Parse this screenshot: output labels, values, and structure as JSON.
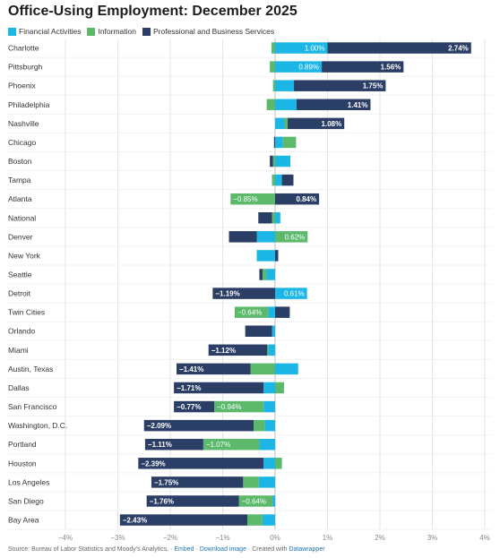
{
  "chart_data": {
    "type": "bar",
    "title": "Office-Using Employment: December 2025",
    "orientation": "horizontal",
    "stacked": "diverging",
    "xlim": [
      -4,
      4
    ],
    "x_ticks": [
      "−4%",
      "−3%",
      "−2%",
      "−1%",
      "0%",
      "1%",
      "2%",
      "3%",
      "4%"
    ],
    "grid": true,
    "legend_position": "top-left",
    "colors": {
      "Financial Activities": "#1bb6e6",
      "Information": "#5cb96b",
      "Professional and Business Services": "#2b3e66"
    },
    "categories": [
      "Charlotte",
      "Pittsburgh",
      "Phoenix",
      "Philadelphia",
      "Nashville",
      "Chicago",
      "Boston",
      "Tampa",
      "Atlanta",
      "National",
      "Denver",
      "New York",
      "Seattle",
      "Detroit",
      "Twin Cities",
      "Orlando",
      "Miami",
      "Austin, Texas",
      "Dallas",
      "San Francisco",
      "Washington, D.C.",
      "Portland",
      "Houston",
      "Los Angeles",
      "San Diego",
      "Bay Area"
    ],
    "series": [
      {
        "name": "Financial Activities",
        "values": [
          1.0,
          0.89,
          0.36,
          0.41,
          0.18,
          0.15,
          0.29,
          0.13,
          0.0,
          0.1,
          -0.35,
          -0.35,
          -0.17,
          0.61,
          -0.13,
          -0.06,
          -0.13,
          0.44,
          -0.22,
          -0.22,
          -0.2,
          -0.3,
          -0.22,
          -0.31,
          -0.05,
          -0.24
        ]
      },
      {
        "name": "Information",
        "values": [
          -0.07,
          -0.1,
          -0.04,
          -0.16,
          0.06,
          0.25,
          -0.04,
          -0.06,
          -0.85,
          -0.06,
          0.62,
          0.0,
          -0.07,
          0.0,
          -0.64,
          0.0,
          -0.02,
          -0.47,
          0.17,
          -0.94,
          -0.21,
          -1.07,
          0.13,
          -0.3,
          -0.64,
          -0.29
        ]
      },
      {
        "name": "Professional and Business Services",
        "values": [
          2.74,
          1.56,
          1.75,
          1.41,
          1.08,
          -0.02,
          -0.06,
          0.22,
          0.84,
          -0.26,
          -0.53,
          0.06,
          -0.06,
          -1.19,
          0.28,
          -0.51,
          -1.12,
          -1.41,
          -1.71,
          -0.77,
          -2.09,
          -1.11,
          -2.39,
          -1.75,
          -1.76,
          -2.43
        ]
      }
    ],
    "value_labels": [
      [
        "1.00%",
        "",
        "2.74%"
      ],
      [
        "0.89%",
        "",
        "1.56%"
      ],
      [
        "",
        "",
        "1.75%"
      ],
      [
        "",
        "",
        "1.41%"
      ],
      [
        "",
        "",
        "1.08%"
      ],
      [
        "",
        "",
        ""
      ],
      [
        "",
        "",
        ""
      ],
      [
        "",
        "",
        ""
      ],
      [
        "",
        "−0.85%",
        "0.84%"
      ],
      [
        "",
        "",
        ""
      ],
      [
        "",
        "0.62%",
        ""
      ],
      [
        "",
        "",
        ""
      ],
      [
        "",
        "",
        ""
      ],
      [
        "0.61%",
        "",
        "−1.19%"
      ],
      [
        "",
        "−0.64%",
        ""
      ],
      [
        "",
        "",
        ""
      ],
      [
        "",
        "",
        "−1.12%"
      ],
      [
        "",
        "",
        "−1.41%"
      ],
      [
        "",
        "",
        "−1.71%"
      ],
      [
        "",
        "−0.94%",
        "−0.77%"
      ],
      [
        "",
        "",
        "−2.09%"
      ],
      [
        "",
        "−1.07%",
        "−1.11%"
      ],
      [
        "",
        "",
        "−2.39%"
      ],
      [
        "",
        "",
        "−1.75%"
      ],
      [
        "",
        "−0.64%",
        "−1.76%"
      ],
      [
        "",
        "",
        "−2.43%"
      ]
    ]
  },
  "footer": {
    "source": "Source: Bureau of Labor Statistics and Moody's Analytics. ·",
    "embed": "Embed",
    "sep1": "·",
    "download": "Download image",
    "created": "· Created with",
    "dw": "Datawrapper"
  }
}
